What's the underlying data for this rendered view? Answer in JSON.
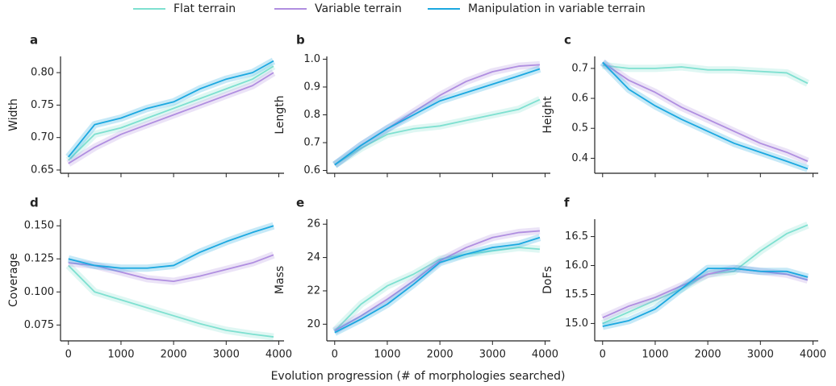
{
  "xlabel": "Evolution progression (# of morphologies searched)",
  "chart_data": [
    {
      "type": "line",
      "title": "a",
      "ylabel": "Width",
      "xlim": [
        -150,
        4100
      ],
      "xticks": [
        0,
        1000,
        2000,
        3000,
        4000
      ],
      "xtick_labels": false,
      "ylim": [
        0.645,
        0.825
      ],
      "yticks": [
        0.65,
        {
          "value": 0.7,
          "label": "0.70"
        },
        0.75,
        {
          "value": 0.8,
          "label": "0.80"
        }
      ],
      "x": [
        0,
        500,
        1000,
        1500,
        2000,
        2500,
        3000,
        3500,
        3900
      ],
      "series": [
        {
          "name": "Flat terrain",
          "color": "#7ee0d0",
          "values": [
            0.665,
            0.705,
            0.715,
            0.73,
            0.745,
            0.76,
            0.775,
            0.79,
            0.81
          ]
        },
        {
          "name": "Variable terrain",
          "color": "#b08ee0",
          "values": [
            0.66,
            0.685,
            0.705,
            0.72,
            0.735,
            0.75,
            0.765,
            0.78,
            0.8
          ]
        },
        {
          "name": "Manipulation in variable terrain",
          "color": "#1ba8e0",
          "values": [
            0.67,
            0.72,
            0.73,
            0.745,
            0.755,
            0.775,
            0.79,
            0.8,
            0.818
          ]
        }
      ]
    },
    {
      "type": "line",
      "title": "b",
      "ylabel": "Length",
      "xlim": [
        -150,
        4100
      ],
      "xticks": [
        0,
        1000,
        2000,
        3000,
        4000
      ],
      "xtick_labels": false,
      "ylim": [
        0.59,
        1.01
      ],
      "yticks": [
        0.6,
        0.7,
        0.8,
        0.9,
        {
          "value": 1,
          "label": "1.0"
        }
      ],
      "x": [
        0,
        500,
        1000,
        1500,
        2000,
        2500,
        3000,
        3500,
        3900
      ],
      "series": [
        {
          "name": "Flat terrain",
          "color": "#7ee0d0",
          "values": [
            0.62,
            0.68,
            0.73,
            0.75,
            0.76,
            0.78,
            0.8,
            0.82,
            0.855
          ]
        },
        {
          "name": "Variable terrain",
          "color": "#b08ee0",
          "values": [
            0.62,
            0.69,
            0.75,
            0.81,
            0.87,
            0.92,
            0.955,
            0.975,
            0.98
          ]
        },
        {
          "name": "Manipulation in variable terrain",
          "color": "#1ba8e0",
          "values": [
            0.62,
            0.69,
            0.75,
            0.8,
            0.85,
            0.88,
            0.91,
            0.94,
            0.965
          ]
        }
      ]
    },
    {
      "type": "line",
      "title": "c",
      "ylabel": "Height",
      "xlim": [
        -150,
        4100
      ],
      "xticks": [
        0,
        1000,
        2000,
        3000,
        4000
      ],
      "xtick_labels": false,
      "ylim": [
        0.35,
        0.74
      ],
      "yticks": [
        0.4,
        0.5,
        0.6,
        0.7
      ],
      "x": [
        0,
        500,
        1000,
        1500,
        2000,
        2500,
        3000,
        3500,
        3900
      ],
      "series": [
        {
          "name": "Flat terrain",
          "color": "#7ee0d0",
          "values": [
            0.71,
            0.7,
            0.7,
            0.705,
            0.695,
            0.695,
            0.69,
            0.685,
            0.65
          ]
        },
        {
          "name": "Variable terrain",
          "color": "#b08ee0",
          "values": [
            0.72,
            0.66,
            0.62,
            0.57,
            0.53,
            0.49,
            0.45,
            0.42,
            0.39
          ]
        },
        {
          "name": "Manipulation in variable terrain",
          "color": "#1ba8e0",
          "values": [
            0.72,
            0.63,
            0.575,
            0.53,
            0.49,
            0.45,
            0.42,
            0.39,
            0.365
          ]
        }
      ]
    },
    {
      "type": "line",
      "title": "d",
      "ylabel": "Coverage",
      "xlim": [
        -150,
        4100
      ],
      "xticks": [
        0,
        1000,
        2000,
        3000,
        4000
      ],
      "xtick_labels": true,
      "ylim": [
        0.063,
        0.155
      ],
      "yticks": [
        0.075,
        {
          "value": 0.1,
          "label": "0.100"
        },
        0.125,
        {
          "value": 0.15,
          "label": "0.150"
        }
      ],
      "x": [
        0,
        500,
        1000,
        1500,
        2000,
        2500,
        3000,
        3500,
        3900
      ],
      "series": [
        {
          "name": "Flat terrain",
          "color": "#7ee0d0",
          "values": [
            0.12,
            0.1,
            0.094,
            0.088,
            0.082,
            0.076,
            0.071,
            0.068,
            0.066
          ]
        },
        {
          "name": "Variable terrain",
          "color": "#b08ee0",
          "values": [
            0.122,
            0.12,
            0.115,
            0.11,
            0.108,
            0.112,
            0.117,
            0.122,
            0.128
          ]
        },
        {
          "name": "Manipulation in variable terrain",
          "color": "#1ba8e0",
          "values": [
            0.125,
            0.12,
            0.118,
            0.118,
            0.12,
            0.13,
            0.138,
            0.145,
            0.15
          ]
        }
      ]
    },
    {
      "type": "line",
      "title": "e",
      "ylabel": "Mass",
      "xlim": [
        -150,
        4100
      ],
      "xticks": [
        0,
        1000,
        2000,
        3000,
        4000
      ],
      "xtick_labels": true,
      "ylim": [
        19,
        26.3
      ],
      "yticks": [
        20,
        22,
        24,
        26
      ],
      "x": [
        0,
        500,
        1000,
        1500,
        2000,
        2500,
        3000,
        3500,
        3900
      ],
      "series": [
        {
          "name": "Flat terrain",
          "color": "#7ee0d0",
          "values": [
            19.6,
            21.2,
            22.3,
            23.0,
            23.9,
            24.2,
            24.4,
            24.6,
            24.5
          ]
        },
        {
          "name": "Variable terrain",
          "color": "#b08ee0",
          "values": [
            19.6,
            20.5,
            21.5,
            22.6,
            23.8,
            24.6,
            25.2,
            25.5,
            25.6
          ]
        },
        {
          "name": "Manipulation in variable terrain",
          "color": "#1ba8e0",
          "values": [
            19.5,
            20.3,
            21.2,
            22.4,
            23.7,
            24.2,
            24.6,
            24.8,
            25.2
          ]
        }
      ]
    },
    {
      "type": "line",
      "title": "f",
      "ylabel": "DoFs",
      "xlim": [
        -150,
        4100
      ],
      "xticks": [
        0,
        1000,
        2000,
        3000,
        4000
      ],
      "xtick_labels": true,
      "ylim": [
        14.7,
        16.8
      ],
      "yticks": [
        {
          "value": 15,
          "label": "15.0"
        },
        15.5,
        {
          "value": 16,
          "label": "16.0"
        },
        16.5
      ],
      "x": [
        0,
        500,
        1000,
        1500,
        2000,
        2500,
        3000,
        3500,
        3900
      ],
      "series": [
        {
          "name": "Flat terrain",
          "color": "#7ee0d0",
          "values": [
            15.0,
            15.2,
            15.4,
            15.6,
            15.85,
            15.9,
            16.25,
            16.55,
            16.7
          ]
        },
        {
          "name": "Variable terrain",
          "color": "#b08ee0",
          "values": [
            15.1,
            15.3,
            15.45,
            15.65,
            15.85,
            15.95,
            15.9,
            15.85,
            15.75
          ]
        },
        {
          "name": "Manipulation in variable terrain",
          "color": "#1ba8e0",
          "values": [
            14.95,
            15.05,
            15.25,
            15.6,
            15.95,
            15.95,
            15.9,
            15.9,
            15.8
          ]
        }
      ]
    }
  ]
}
